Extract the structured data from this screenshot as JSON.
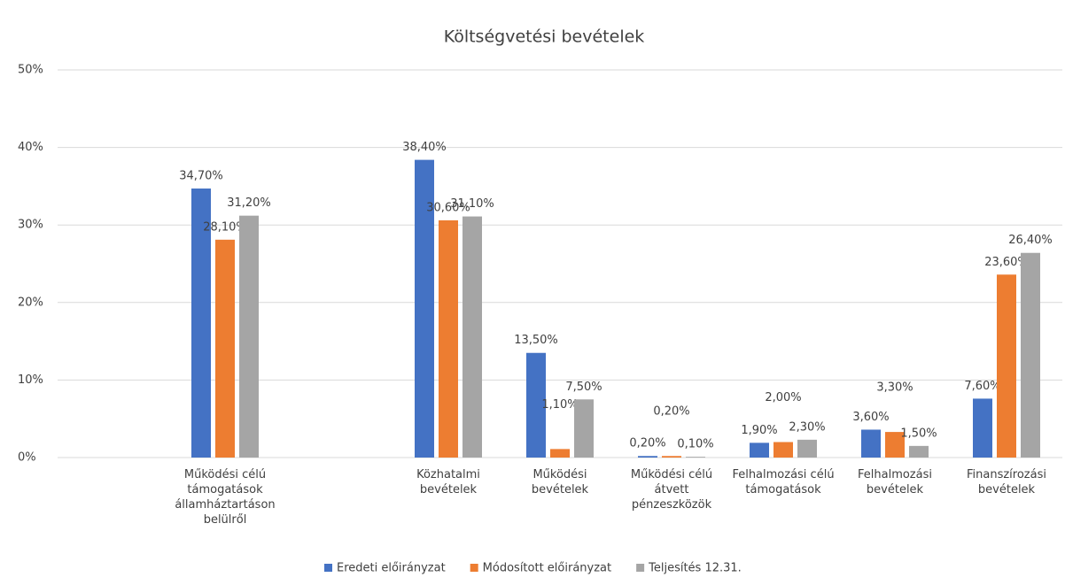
{
  "chart_data": {
    "type": "bar",
    "title": "Költségvetési bevételek",
    "categories": [
      null,
      "Működési célú támogatások államháztartáson belülről",
      null,
      "Közhatalmi bevételek",
      "Működési bevételek",
      "Működési célú átvett pénzeszközök",
      "Felhalmozási célú támogatások",
      "Felhalmozási bevételek",
      "Finanszírozási bevételek"
    ],
    "series": [
      {
        "name": "Eredeti előirányzat",
        "color": "#4472c4",
        "values": [
          null,
          34.7,
          null,
          38.4,
          13.5,
          0.2,
          1.9,
          3.6,
          7.6
        ],
        "value_labels": [
          null,
          "34,70%",
          null,
          "38,40%",
          "13,50%",
          "0,20%",
          "1,90%",
          "3,60%",
          "7,60%"
        ]
      },
      {
        "name": "Módosított előirányzat",
        "color": "#ed7d31",
        "values": [
          null,
          28.1,
          null,
          30.6,
          1.1,
          0.2,
          2.0,
          3.3,
          23.6
        ],
        "value_labels": [
          null,
          "28,10%",
          null,
          "30,60%",
          "1,10%",
          "0,20%",
          "2,00%",
          "3,30%",
          "23,60%"
        ]
      },
      {
        "name": "Teljesítés 12.31.",
        "color": "#a5a5a5",
        "values": [
          null,
          31.2,
          null,
          31.1,
          7.5,
          0.1,
          2.3,
          1.5,
          26.4
        ],
        "value_labels": [
          null,
          "31,20%",
          null,
          "31,10%",
          "7,50%",
          "0,10%",
          "2,30%",
          "1,50%",
          "26,40%"
        ]
      }
    ],
    "ylim": [
      0,
      50
    ],
    "yticks": [
      {
        "value": 0,
        "label": "0%"
      },
      {
        "value": 10,
        "label": "10%"
      },
      {
        "value": 20,
        "label": "20%"
      },
      {
        "value": 30,
        "label": "30%"
      },
      {
        "value": 40,
        "label": "40%"
      },
      {
        "value": 50,
        "label": "50%"
      }
    ],
    "grid": true,
    "legend": "bottom"
  }
}
